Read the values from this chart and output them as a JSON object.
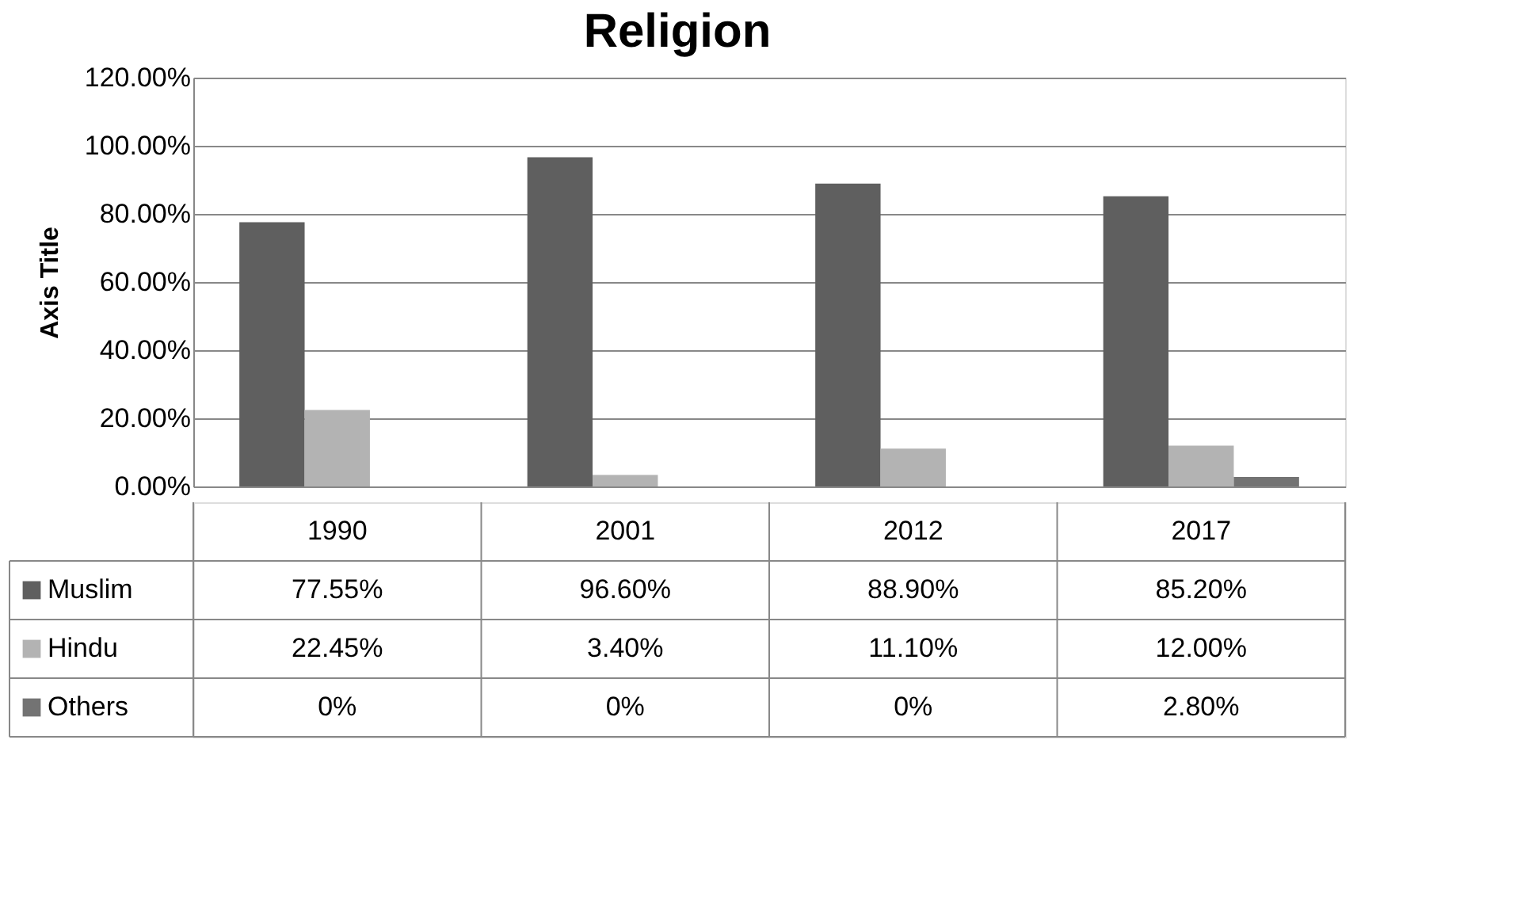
{
  "chart_data": {
    "type": "bar",
    "title": "Religion",
    "ylabel": "Axis Title",
    "categories": [
      "1990",
      "2001",
      "2012",
      "2017"
    ],
    "series": [
      {
        "name": "Muslim",
        "color": "#5f5f5f",
        "values": [
          77.55,
          96.6,
          88.9,
          85.2
        ],
        "value_labels": [
          "77.55%",
          "96.60%",
          "88.90%",
          "85.20%"
        ]
      },
      {
        "name": "Hindu",
        "color": "#b3b3b3",
        "values": [
          22.45,
          3.4,
          11.1,
          12.0
        ],
        "value_labels": [
          "22.45%",
          "3.40%",
          "11.10%",
          "12.00%"
        ]
      },
      {
        "name": "Others",
        "color": "#737373",
        "values": [
          0,
          0,
          0,
          2.8
        ],
        "value_labels": [
          "0%",
          "0%",
          "0%",
          "2.80%"
        ]
      }
    ],
    "ylim": [
      0,
      120
    ],
    "yticks": [
      {
        "value": 0,
        "label": "0.00%"
      },
      {
        "value": 20,
        "label": "20.00%"
      },
      {
        "value": 40,
        "label": "40.00%"
      },
      {
        "value": 60,
        "label": "60.00%"
      },
      {
        "value": 80,
        "label": "80.00%"
      },
      {
        "value": 100,
        "label": "100.00%"
      },
      {
        "value": 120,
        "label": "120.00%"
      }
    ],
    "grid": "y",
    "legend": "bottom"
  }
}
